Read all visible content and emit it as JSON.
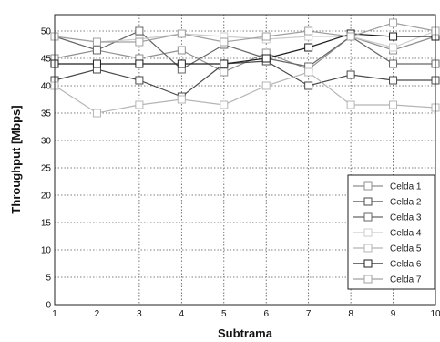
{
  "chart_data": {
    "type": "line",
    "title": "",
    "xlabel": "Subtrama",
    "ylabel": "Throughput [Mbps]",
    "x": [
      1,
      2,
      3,
      4,
      5,
      6,
      7,
      8,
      9,
      10
    ],
    "xlim": [
      1,
      10
    ],
    "ylim": [
      0,
      53
    ],
    "yticks": [
      0,
      5,
      10,
      15,
      20,
      25,
      30,
      35,
      40,
      45,
      50
    ],
    "grid": true,
    "legend_position": "bottom-right",
    "marker": "square",
    "series": [
      {
        "name": "Celda 1",
        "color": "#8f8f8f",
        "values": [
          45.0,
          46.5,
          45.0,
          46.5,
          42.5,
          46.0,
          43.0,
          49.0,
          46.5,
          49.0
        ]
      },
      {
        "name": "Celda 2",
        "color": "#4a4a4a",
        "values": [
          41.0,
          43.0,
          41.0,
          38.0,
          44.0,
          44.5,
          40.0,
          42.0,
          41.0,
          41.0
        ]
      },
      {
        "name": "Celda 3",
        "color": "#666666",
        "values": [
          49.0,
          46.5,
          50.0,
          43.0,
          47.5,
          45.0,
          43.5,
          49.0,
          44.0,
          44.0
        ]
      },
      {
        "name": "Celda 4",
        "color": "#cccccc",
        "values": [
          49.0,
          48.0,
          48.5,
          49.5,
          49.0,
          48.5,
          49.0,
          49.0,
          47.0,
          50.0
        ]
      },
      {
        "name": "Celda 5",
        "color": "#b5b5b5",
        "values": [
          40.0,
          35.0,
          36.5,
          37.5,
          36.5,
          40.0,
          42.5,
          36.5,
          36.5,
          36.0
        ]
      },
      {
        "name": "Celda 6",
        "color": "#1f1f1f",
        "values": [
          44.0,
          44.0,
          44.0,
          44.0,
          44.0,
          45.0,
          47.0,
          49.5,
          49.0,
          49.0
        ]
      },
      {
        "name": "Celda 7",
        "color": "#a0a0a0",
        "values": [
          49.0,
          48.0,
          48.0,
          49.5,
          48.0,
          49.0,
          50.0,
          49.0,
          51.5,
          50.0
        ]
      }
    ]
  }
}
